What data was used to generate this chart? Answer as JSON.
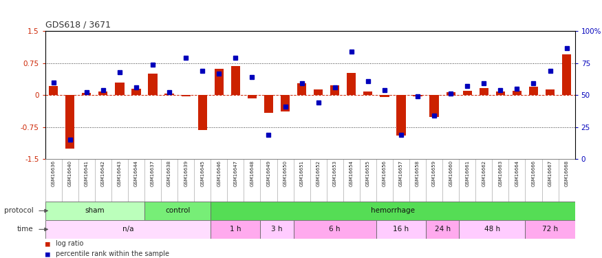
{
  "title": "GDS618 / 3671",
  "samples": [
    "GSM16636",
    "GSM16640",
    "GSM16641",
    "GSM16642",
    "GSM16643",
    "GSM16644",
    "GSM16637",
    "GSM16638",
    "GSM16639",
    "GSM16645",
    "GSM16646",
    "GSM16647",
    "GSM16648",
    "GSM16649",
    "GSM16650",
    "GSM16651",
    "GSM16652",
    "GSM16653",
    "GSM16654",
    "GSM16655",
    "GSM16656",
    "GSM16657",
    "GSM16658",
    "GSM16659",
    "GSM16660",
    "GSM16661",
    "GSM16662",
    "GSM16663",
    "GSM16664",
    "GSM16666",
    "GSM16667",
    "GSM16668"
  ],
  "log_ratio": [
    0.22,
    -1.25,
    0.05,
    0.08,
    0.3,
    0.15,
    0.5,
    0.03,
    -0.03,
    -0.82,
    0.62,
    0.68,
    -0.08,
    -0.42,
    -0.38,
    0.28,
    0.13,
    0.23,
    0.52,
    0.08,
    -0.04,
    -0.95,
    -0.03,
    -0.52,
    0.07,
    0.1,
    0.16,
    0.08,
    0.1,
    0.2,
    0.13,
    0.95
  ],
  "pct_rank": [
    60,
    15,
    52,
    54,
    68,
    56,
    74,
    52,
    79,
    69,
    67,
    79,
    64,
    19,
    41,
    59,
    44,
    56,
    84,
    61,
    54,
    19,
    49,
    34,
    51,
    57,
    59,
    54,
    55,
    59,
    69,
    87
  ],
  "bar_color": "#cc2200",
  "dot_color": "#0000bb",
  "ylim_left": [
    -1.5,
    1.5
  ],
  "ylim_right": [
    0,
    100
  ],
  "yticks_left": [
    -1.5,
    -0.75,
    0.0,
    0.75,
    1.5
  ],
  "ytick_labels_left": [
    "-1.5",
    "-0.75",
    "0",
    "0.75",
    "1.5"
  ],
  "yticks_right": [
    0,
    25,
    50,
    75,
    100
  ],
  "ytick_labels_right": [
    "0",
    "25",
    "50",
    "75",
    "100%"
  ],
  "hline_dotted": [
    0.75,
    -0.75
  ],
  "hline_dashed": [
    0.0
  ],
  "protocol_rows": [
    {
      "label": "sham",
      "start": 0,
      "end": 6,
      "color": "#bbffbb"
    },
    {
      "label": "control",
      "start": 6,
      "end": 10,
      "color": "#77ee77"
    },
    {
      "label": "hemorrhage",
      "start": 10,
      "end": 32,
      "color": "#55dd55"
    }
  ],
  "time_rows": [
    {
      "label": "n/a",
      "start": 0,
      "end": 10,
      "color": "#ffddff"
    },
    {
      "label": "1 h",
      "start": 10,
      "end": 13,
      "color": "#ffaaee"
    },
    {
      "label": "3 h",
      "start": 13,
      "end": 15,
      "color": "#ffccff"
    },
    {
      "label": "6 h",
      "start": 15,
      "end": 20,
      "color": "#ffaaee"
    },
    {
      "label": "16 h",
      "start": 20,
      "end": 23,
      "color": "#ffccff"
    },
    {
      "label": "24 h",
      "start": 23,
      "end": 25,
      "color": "#ffaaee"
    },
    {
      "label": "48 h",
      "start": 25,
      "end": 29,
      "color": "#ffccff"
    },
    {
      "label": "72 h",
      "start": 29,
      "end": 32,
      "color": "#ffaaee"
    }
  ],
  "legend_bar_color": "#cc2200",
  "legend_dot_color": "#0000bb",
  "legend_bar_label": "log ratio",
  "legend_dot_label": "percentile rank within the sample",
  "bg_color": "#ffffff",
  "protocol_label": "protocol",
  "time_label": "time",
  "tick_label_color_left": "#cc2200",
  "tick_label_color_right": "#0000bb",
  "xtick_bg": "#dddddd"
}
